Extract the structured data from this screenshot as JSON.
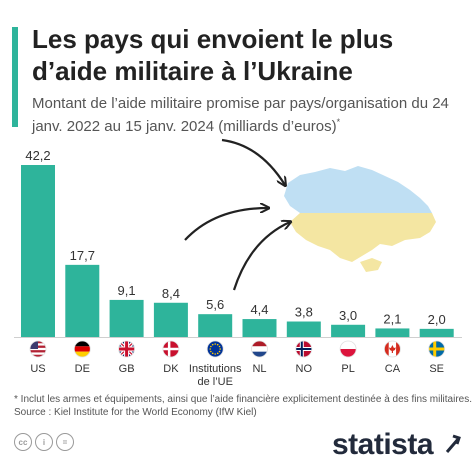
{
  "header": {
    "title": "Les pays qui envoient le plus d’aide militaire à l’Ukraine",
    "subtitle": "Montant de l’aide militaire promise par pays/organisation du 24 janv. 2022 au 15 janv. 2024 (milliards d’euros)",
    "subtitle_mark": "*"
  },
  "colors": {
    "bar": "#2eb49b",
    "accent": "#2eb49b",
    "title": "#222222",
    "text": "#555555",
    "map_blue": "#bfdff3",
    "map_yellow": "#f4e6a2",
    "arrow": "#222222"
  },
  "chart_data": {
    "type": "bar",
    "categories": [
      "US",
      "DE",
      "GB",
      "DK",
      "Institutions de l’UE",
      "NL",
      "NO",
      "PL",
      "CA",
      "SE"
    ],
    "values": [
      42.2,
      17.7,
      9.1,
      8.4,
      5.6,
      4.4,
      3.8,
      3.0,
      2.1,
      2.0
    ],
    "value_labels": [
      "42,2",
      "17,7",
      "9,1",
      "8,4",
      "5,6",
      "4,4",
      "3,8",
      "3,0",
      "2,1",
      "2,0"
    ],
    "flags": [
      "us-flag-icon",
      "de-flag-icon",
      "gb-flag-icon",
      "dk-flag-icon",
      "eu-flag-icon",
      "nl-flag-icon",
      "no-flag-icon",
      "pl-flag-icon",
      "ca-flag-icon",
      "se-flag-icon"
    ],
    "ylim": [
      0,
      42.2
    ],
    "grid": false,
    "legend": "none"
  },
  "footer": {
    "note": "* Inclut les armes et équipements, ainsi que l’aide financière explicitement destinée à des fins militaires.",
    "source": "Source : Kiel Institute for the World Economy (IfW Kiel)",
    "brand": "statista",
    "license_icons": [
      "cc-icon",
      "by-icon",
      "equals-icon"
    ]
  }
}
